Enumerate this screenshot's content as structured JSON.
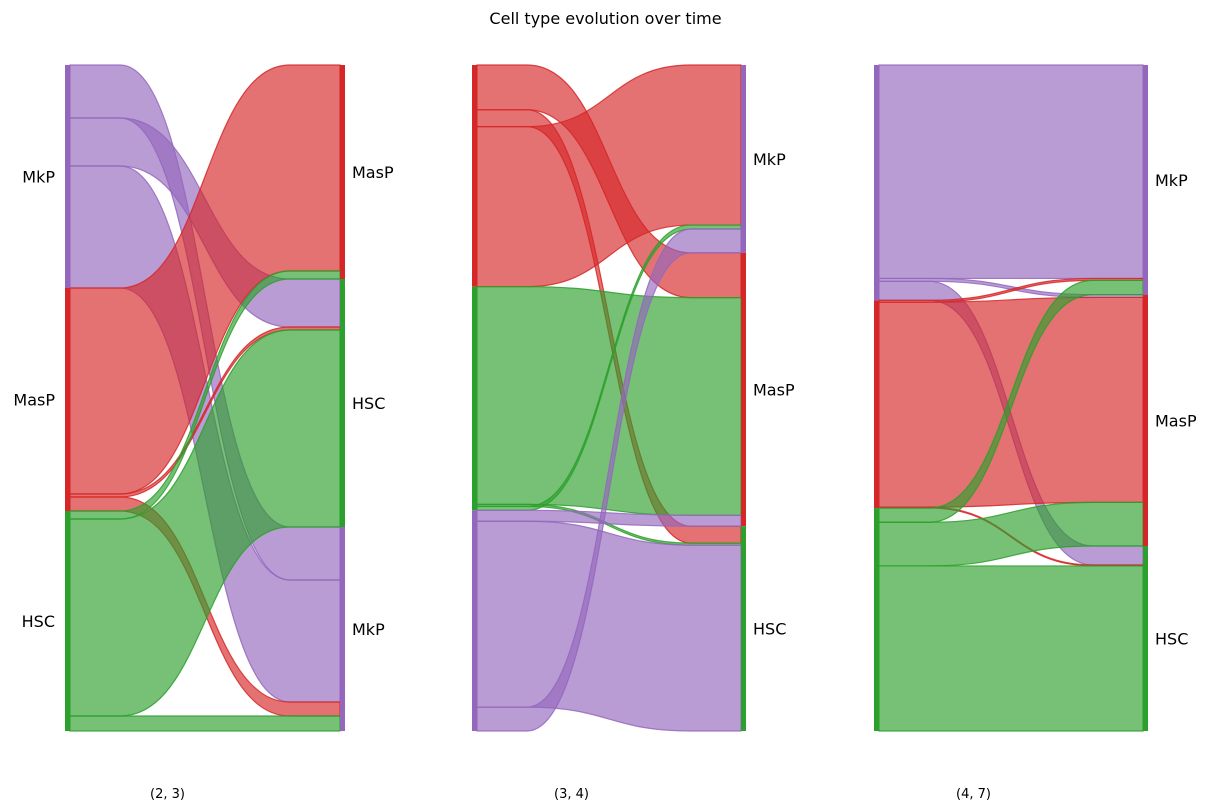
{
  "chart_data": {
    "type": "sankey",
    "title": "Cell type evolution over time",
    "colors": {
      "MkP": "#9467bd",
      "MasP": "#d62728",
      "HSC": "#2ca02c"
    },
    "panels": [
      {
        "label": "(2, 3)",
        "left_order": [
          "MkP",
          "MasP",
          "HSC"
        ],
        "right_order": [
          "MasP",
          "HSC",
          "MkP"
        ],
        "flows": [
          {
            "source": "MkP",
            "target": "MkP",
            "value": 53,
            "position": "top"
          },
          {
            "source": "MkP",
            "target": "HSC",
            "value": 48
          },
          {
            "source": "MkP",
            "target": "MkP",
            "value": 122,
            "position": "bottom"
          },
          {
            "source": "MasP",
            "target": "MasP",
            "value": 206
          },
          {
            "source": "MasP",
            "target": "HSC",
            "value": 3
          },
          {
            "source": "MasP",
            "target": "MkP",
            "value": 14
          },
          {
            "source": "HSC",
            "target": "MasP",
            "value": 8
          },
          {
            "source": "HSC",
            "target": "HSC",
            "value": 197
          },
          {
            "source": "HSC",
            "target": "MkP",
            "value": 15
          }
        ]
      },
      {
        "label": "(3, 4)",
        "left_order": [
          "MasP",
          "HSC",
          "MkP"
        ],
        "right_order": [
          "MkP",
          "MasP",
          "HSC"
        ],
        "flows": [
          {
            "source": "MasP",
            "target": "MasP",
            "value": 45,
            "position": "top"
          },
          {
            "source": "MasP",
            "target": "HSC",
            "value": 17
          },
          {
            "source": "MasP",
            "target": "MkP",
            "value": 161,
            "position": "bottom"
          },
          {
            "source": "HSC",
            "target": "MasP",
            "value": 219
          },
          {
            "source": "HSC",
            "target": "HSC",
            "value": 2
          },
          {
            "source": "HSC",
            "target": "MkP",
            "value": 4
          },
          {
            "source": "MkP",
            "target": "MasP",
            "value": 11
          },
          {
            "source": "MkP",
            "target": "HSC",
            "value": 187
          },
          {
            "source": "MkP",
            "target": "MkP",
            "value": 24
          }
        ]
      },
      {
        "label": "(4, 7)",
        "left_order": [
          "MkP",
          "MasP",
          "HSC"
        ],
        "right_order": [
          "MkP",
          "MasP",
          "HSC"
        ],
        "flows": [
          {
            "source": "MkP",
            "target": "MkP",
            "value": 225
          },
          {
            "source": "MkP",
            "target": "MasP",
            "value": 3
          },
          {
            "source": "MkP",
            "target": "HSC",
            "value": 20
          },
          {
            "source": "MasP",
            "target": "MkP",
            "value": 2
          },
          {
            "source": "MasP",
            "target": "MasP",
            "value": 216
          },
          {
            "source": "MasP",
            "target": "HSC",
            "value": 1
          },
          {
            "source": "HSC",
            "target": "MkP",
            "value": 15
          },
          {
            "source": "HSC",
            "target": "MasP",
            "value": 46
          },
          {
            "source": "HSC",
            "target": "HSC",
            "value": 174
          }
        ]
      }
    ]
  }
}
